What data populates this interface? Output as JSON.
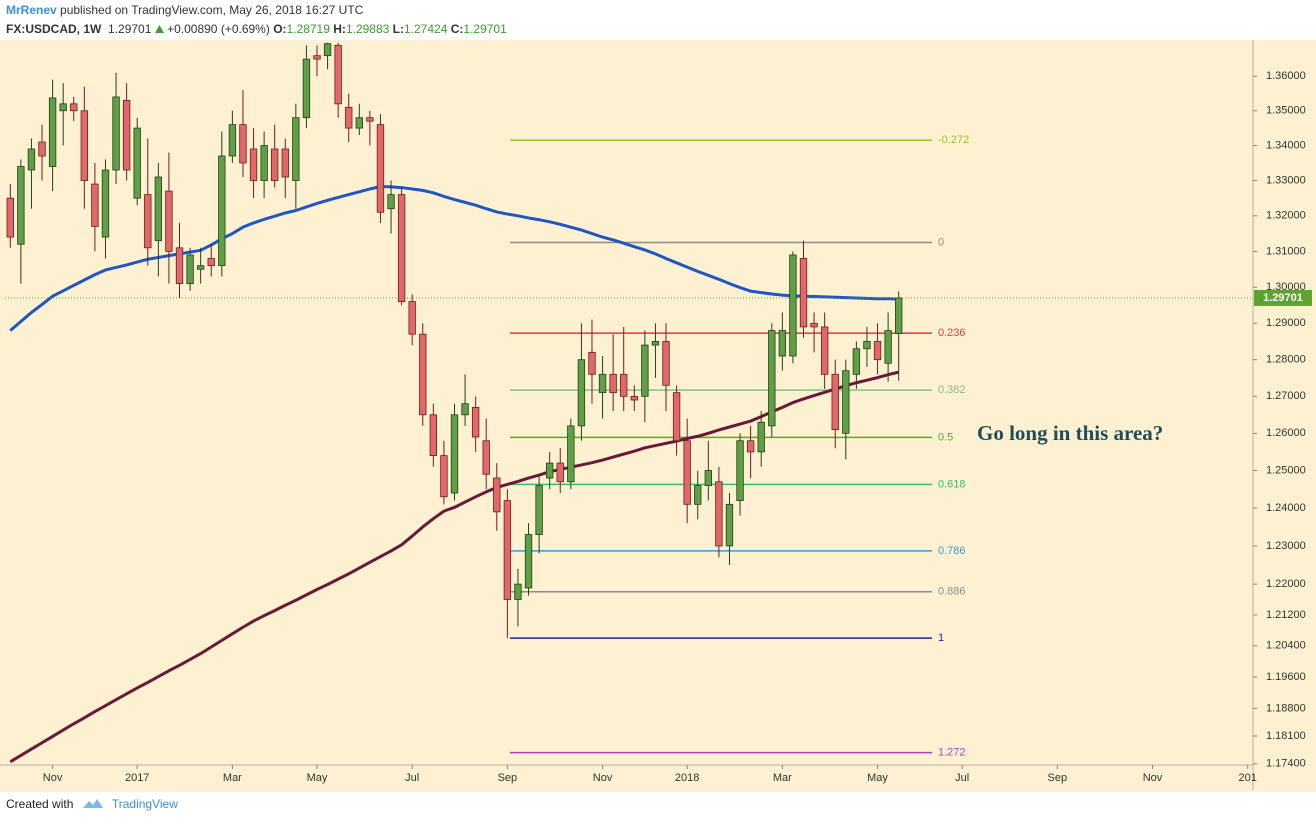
{
  "header": {
    "author": "MrRenev",
    "published": "published on TradingView.com, May 26, 2018 16:27 UTC",
    "symbol": "FX:USDCAD, 1W",
    "price": "1.29701",
    "change": "+0.00890 (+0.69%)",
    "ohlc": [
      {
        "label": "O:",
        "value": "1.28719"
      },
      {
        "label": "H:",
        "value": "1.29883"
      },
      {
        "label": "L:",
        "value": "1.27424"
      },
      {
        "label": "C:",
        "value": "1.29701"
      }
    ]
  },
  "footer": {
    "created": "Created with",
    "brand": "TradingView"
  },
  "chart_data": {
    "type": "candlestick",
    "log_scale": true,
    "grid": false,
    "up_color": "#5f9f45",
    "down_color": "#e06868",
    "ylim": [
      1.1737,
      1.37
    ],
    "yticks": [
      {
        "value": 1.36,
        "label": "1.36000"
      },
      {
        "value": 1.35,
        "label": "1.35000"
      },
      {
        "value": 1.34,
        "label": "1.34000"
      },
      {
        "value": 1.33,
        "label": "1.33000"
      },
      {
        "value": 1.32,
        "label": "1.32000"
      },
      {
        "value": 1.31,
        "label": "1.31000"
      },
      {
        "value": 1.3,
        "label": "1.30000"
      },
      {
        "value": 1.29,
        "label": "1.29000"
      },
      {
        "value": 1.28,
        "label": "1.28000"
      },
      {
        "value": 1.27,
        "label": "1.27000"
      },
      {
        "value": 1.26,
        "label": "1.26000"
      },
      {
        "value": 1.25,
        "label": "1.25000"
      },
      {
        "value": 1.24,
        "label": "1.24000"
      },
      {
        "value": 1.23,
        "label": "1.23000"
      },
      {
        "value": 1.22,
        "label": "1.22000"
      },
      {
        "value": 1.212,
        "label": "1.21200"
      },
      {
        "value": 1.204,
        "label": "1.20400"
      },
      {
        "value": 1.196,
        "label": "1.19600"
      },
      {
        "value": 1.188,
        "label": "1.18800"
      },
      {
        "value": 1.181,
        "label": "1.18100"
      },
      {
        "value": 1.174,
        "label": "1.17400"
      }
    ],
    "categories": [
      null,
      null,
      null,
      null,
      "Nov",
      null,
      null,
      null,
      null,
      null,
      null,
      null,
      "2017",
      null,
      null,
      null,
      null,
      null,
      null,
      null,
      null,
      "Mar",
      null,
      null,
      null,
      null,
      null,
      null,
      null,
      "May",
      null,
      null,
      null,
      null,
      null,
      null,
      null,
      null,
      "Jul",
      null,
      null,
      null,
      null,
      null,
      null,
      null,
      null,
      "Sep",
      null,
      null,
      null,
      null,
      null,
      null,
      null,
      null,
      "Nov",
      null,
      null,
      null,
      null,
      null,
      null,
      null,
      "2018",
      null,
      null,
      null,
      null,
      null,
      null,
      null,
      null,
      "Mar",
      null,
      null,
      null,
      null,
      null,
      null,
      null,
      null,
      "May",
      null,
      null,
      null,
      null,
      null,
      null,
      null,
      "Jul",
      null,
      null,
      null,
      null,
      null,
      null,
      null,
      null,
      "Sep",
      null,
      null,
      null,
      null,
      null,
      null,
      null,
      null,
      "Nov",
      null,
      null,
      null,
      null,
      null,
      null,
      null,
      null,
      "201"
    ],
    "open": [
      1.325,
      1.312,
      1.333,
      1.341,
      1.334,
      1.35,
      1.352,
      1.35,
      1.329,
      1.314,
      1.333,
      1.353,
      1.325,
      1.326,
      1.313,
      1.327,
      1.311,
      1.301,
      1.305,
      1.308,
      1.306,
      1.337,
      1.346,
      1.339,
      1.33,
      1.339,
      1.339,
      1.33,
      1.348,
      1.366,
      1.366,
      1.369,
      1.351,
      1.345,
      1.348,
      1.346,
      1.322,
      1.326,
      1.296,
      1.287,
      1.265,
      1.254,
      1.244,
      1.265,
      1.267,
      1.258,
      1.248,
      1.242,
      1.216,
      1.219,
      1.233,
      1.248,
      1.252,
      1.247,
      1.262,
      1.282,
      1.271,
      1.276,
      1.276,
      1.27,
      1.27,
      1.284,
      1.285,
      1.271,
      1.258,
      1.241,
      1.246,
      1.247,
      1.23,
      1.242,
      1.258,
      1.255,
      1.262,
      1.281,
      1.281,
      1.308,
      1.29,
      1.289,
      1.276,
      1.26,
      1.276,
      1.283,
      1.285,
      1.279,
      1.28719,
      null,
      null,
      null,
      null,
      null,
      null,
      null,
      null,
      null,
      null,
      null,
      null,
      null,
      null,
      null,
      null,
      null,
      null,
      null,
      null,
      null,
      null,
      null,
      null,
      null,
      null,
      null,
      null,
      null,
      null,
      null,
      null,
      null
    ],
    "high": [
      1.329,
      1.336,
      1.342,
      1.346,
      1.359,
      1.358,
      1.354,
      1.357,
      1.335,
      1.336,
      1.361,
      1.358,
      1.348,
      1.342,
      1.335,
      1.338,
      1.318,
      1.311,
      1.311,
      1.312,
      1.344,
      1.35,
      1.356,
      1.345,
      1.344,
      1.346,
      1.342,
      1.352,
      1.369,
      1.369,
      1.3698,
      1.3698,
      1.355,
      1.352,
      1.35,
      1.349,
      1.33,
      1.328,
      1.298,
      1.29,
      1.268,
      1.258,
      1.268,
      1.276,
      1.27,
      1.264,
      1.252,
      1.245,
      1.224,
      1.236,
      1.249,
      1.255,
      1.256,
      1.264,
      1.29,
      1.291,
      1.281,
      1.287,
      1.289,
      1.273,
      1.288,
      1.29,
      1.29,
      1.273,
      1.264,
      1.25,
      1.258,
      1.251,
      1.244,
      1.26,
      1.262,
      1.266,
      1.29,
      1.293,
      1.31,
      1.313,
      1.293,
      1.293,
      1.28,
      1.28,
      1.285,
      1.289,
      1.29,
      1.293,
      1.29883,
      null,
      null,
      null,
      null,
      null,
      null,
      null,
      null,
      null,
      null,
      null,
      null,
      null,
      null,
      null,
      null,
      null,
      null,
      null,
      null,
      null,
      null,
      null,
      null,
      null,
      null,
      null,
      null,
      null,
      null,
      null,
      null,
      null
    ],
    "low": [
      1.311,
      1.301,
      1.322,
      1.33,
      1.327,
      1.34,
      1.347,
      1.322,
      1.31,
      1.308,
      1.329,
      1.33,
      1.323,
      1.306,
      1.303,
      1.301,
      1.297,
      1.299,
      1.301,
      1.303,
      1.303,
      1.335,
      1.331,
      1.325,
      1.325,
      1.328,
      1.325,
      1.322,
      1.345,
      1.36,
      1.362,
      1.348,
      1.341,
      1.343,
      1.34,
      1.318,
      1.315,
      1.295,
      1.284,
      1.262,
      1.251,
      1.241,
      1.242,
      1.262,
      1.255,
      1.245,
      1.234,
      1.206,
      1.209,
      1.217,
      1.228,
      1.245,
      1.244,
      1.245,
      1.258,
      1.268,
      1.264,
      1.266,
      1.266,
      1.266,
      1.263,
      1.275,
      1.266,
      1.254,
      1.236,
      1.237,
      1.242,
      1.227,
      1.225,
      1.238,
      1.248,
      1.251,
      1.259,
      1.277,
      1.279,
      1.286,
      1.282,
      1.272,
      1.256,
      1.253,
      1.272,
      1.278,
      1.276,
      1.274,
      1.27424,
      null,
      null,
      null,
      null,
      null,
      null,
      null,
      null,
      null,
      null,
      null,
      null,
      null,
      null,
      null,
      null,
      null,
      null,
      null,
      null,
      null,
      null,
      null,
      null,
      null,
      null,
      null,
      null,
      null,
      null,
      null,
      null,
      null
    ],
    "close": [
      1.314,
      1.334,
      1.339,
      1.337,
      1.3537,
      1.352,
      1.35,
      1.33,
      1.317,
      1.333,
      1.354,
      1.333,
      1.345,
      1.311,
      1.331,
      1.31,
      1.301,
      1.309,
      1.306,
      1.306,
      1.337,
      1.346,
      1.335,
      1.33,
      1.34,
      1.33,
      1.331,
      1.348,
      1.365,
      1.365,
      1.3695,
      1.352,
      1.345,
      1.348,
      1.347,
      1.321,
      1.326,
      1.296,
      1.287,
      1.265,
      1.254,
      1.243,
      1.265,
      1.268,
      1.259,
      1.249,
      1.239,
      1.216,
      1.22,
      1.233,
      1.246,
      1.252,
      1.247,
      1.262,
      1.28,
      1.276,
      1.276,
      1.271,
      1.27,
      1.269,
      1.284,
      1.285,
      1.273,
      1.258,
      1.241,
      1.246,
      1.25,
      1.23,
      1.241,
      1.258,
      1.255,
      1.263,
      1.288,
      1.288,
      1.309,
      1.289,
      1.289,
      1.276,
      1.261,
      1.277,
      1.283,
      1.285,
      1.28,
      1.288,
      1.29701,
      null,
      null,
      null,
      null,
      null,
      null,
      null,
      null,
      null,
      null,
      null,
      null,
      null,
      null,
      null,
      null,
      null,
      null,
      null,
      null,
      null,
      null,
      null,
      null,
      null,
      null,
      null,
      null,
      null,
      null,
      null,
      null,
      null
    ],
    "overlays": [
      {
        "color": "#1f55c4",
        "width": 3,
        "values": [
          1.288,
          1.2905,
          1.293,
          1.2952,
          1.2975,
          1.299,
          1.3005,
          1.302,
          1.3035,
          1.3048,
          1.3055,
          1.3062,
          1.307,
          1.3078,
          1.3083,
          1.3088,
          1.3093,
          1.3098,
          1.3103,
          1.3118,
          1.3135,
          1.315,
          1.3168,
          1.318,
          1.319,
          1.3199,
          1.3208,
          1.3215,
          1.3225,
          1.3235,
          1.3244,
          1.3252,
          1.326,
          1.3268,
          1.3276,
          1.3283,
          1.3282,
          1.328,
          1.3276,
          1.3272,
          1.3265,
          1.3255,
          1.3246,
          1.3238,
          1.323,
          1.322,
          1.3211,
          1.3205,
          1.32,
          1.3194,
          1.3189,
          1.3183,
          1.3176,
          1.3168,
          1.316,
          1.315,
          1.314,
          1.3132,
          1.3123,
          1.3113,
          1.3104,
          1.3093,
          1.308,
          1.3068,
          1.3056,
          1.3044,
          1.3033,
          1.3022,
          1.301,
          1.2999,
          1.2989,
          1.2985,
          1.2981,
          1.2978,
          1.2976,
          1.2975,
          1.2974,
          1.2973,
          1.2972,
          1.2971,
          1.297,
          1.2969,
          1.2968,
          1.2968,
          1.2967,
          null,
          null,
          null,
          null,
          null,
          null,
          null,
          null,
          null,
          null,
          null,
          null,
          null,
          null,
          null,
          null,
          null,
          null,
          null,
          null,
          null,
          null,
          null,
          null,
          null,
          null,
          null,
          null,
          null,
          null,
          null,
          null,
          null
        ]
      },
      {
        "color": "#6b1838",
        "width": 3,
        "values": [
          1.1745,
          1.1761,
          1.1777,
          1.1793,
          1.1809,
          1.1825,
          1.1841,
          1.1856,
          1.1872,
          1.1887,
          1.1902,
          1.1917,
          1.1932,
          1.1946,
          1.1961,
          1.1976,
          1.199,
          1.2005,
          1.202,
          1.2037,
          1.2054,
          1.2071,
          1.2088,
          1.2104,
          1.2118,
          1.2131,
          1.2145,
          1.2158,
          1.2172,
          1.2186,
          1.2199,
          1.2213,
          1.2227,
          1.2242,
          1.2257,
          1.2272,
          1.2287,
          1.2303,
          1.2326,
          1.235,
          1.2372,
          1.2392,
          1.2402,
          1.2416,
          1.243,
          1.2443,
          1.2455,
          1.2463,
          1.2471,
          1.248,
          1.2488,
          1.2497,
          1.2503,
          1.2509,
          1.2515,
          1.2521,
          1.2528,
          1.2536,
          1.2544,
          1.2552,
          1.2561,
          1.2567,
          1.2573,
          1.2579,
          1.2586,
          1.2592,
          1.26,
          1.2609,
          1.2617,
          1.2625,
          1.2633,
          1.2645,
          1.2658,
          1.267,
          1.2683,
          1.2693,
          1.2702,
          1.2711,
          1.272,
          1.2729,
          1.2737,
          1.2744,
          1.2751,
          1.2759,
          1.2766,
          null,
          null,
          null,
          null,
          null,
          null,
          null,
          null,
          null,
          null,
          null,
          null,
          null,
          null,
          null,
          null,
          null,
          null,
          null,
          null,
          null,
          null,
          null,
          null,
          null,
          null,
          null,
          null,
          null,
          null,
          null,
          null,
          null
        ]
      }
    ],
    "levels": [
      {
        "label": "-0.272",
        "value": 1.3415,
        "color": "#9ac42a"
      },
      {
        "label": "0",
        "value": 1.3125,
        "color": "#8c8c8c"
      },
      {
        "label": "0.236",
        "value": 1.2873,
        "color": "#e0393e"
      },
      {
        "label": "0.382",
        "value": 1.2717,
        "color": "#86c086"
      },
      {
        "label": "0.5",
        "value": 1.2589,
        "color": "#4cb028"
      },
      {
        "label": "0.618",
        "value": 1.2463,
        "color": "#2fc07a"
      },
      {
        "label": "0.786",
        "value": 1.2287,
        "color": "#3a9ad4"
      },
      {
        "label": "0.886",
        "value": 1.218,
        "color": "#8c8c8c"
      },
      {
        "label": "1",
        "value": 1.206,
        "color": "#23239e"
      },
      {
        "label": "1.272",
        "value": 1.1768,
        "color": "#b13fc4"
      }
    ],
    "last_price": {
      "value": 1.29701,
      "label": "1.29701",
      "color": "#5ba52e"
    },
    "annotation": "Go long in this area?"
  }
}
